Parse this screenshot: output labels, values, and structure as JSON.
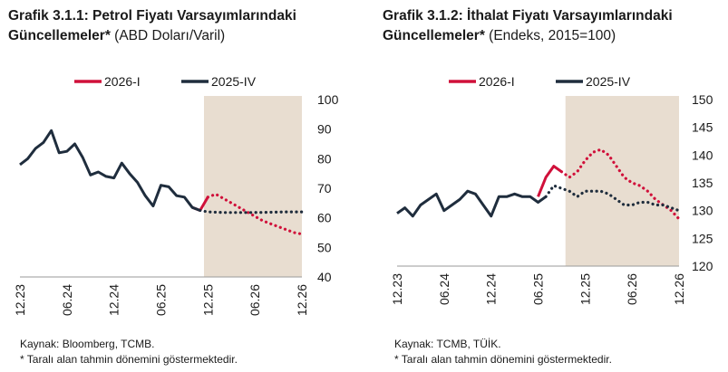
{
  "charts": [
    {
      "title_bold": "Grafik 3.1.1: Petrol Fiyatı Varsayımlarındaki Güncellemeler*",
      "title_unit": "(ABD Doları/Varil)",
      "source_line": "Kaynak: Bloomberg, TCMB.",
      "note_line": "* Taralı alan tahmin dönemini göstermektedir."
    },
    {
      "title_bold": "Grafik 3.1.2: İthalat Fiyatı Varsayımlarındaki Güncellemeler*",
      "title_unit": "(Endeks, 2015=100)",
      "source_line": "Kaynak: TCMB, TÜİK.",
      "note_line": "* Taralı alan tahmin dönemini göstermektedir."
    }
  ],
  "colors": {
    "series_2026": "#d0103a",
    "series_2025": "#1f2d3d",
    "shade": "#e8ddd0",
    "axis": "#9a9a9a"
  },
  "chart_data": [
    {
      "type": "line",
      "x_ticks": [
        "12.23",
        "06.24",
        "12.24",
        "06.25",
        "12.25",
        "06.26",
        "12.26"
      ],
      "x_tick_index": [
        0,
        6,
        12,
        18,
        24,
        30,
        36
      ],
      "ylim": [
        40,
        100
      ],
      "y_ticks": [
        "40",
        "50",
        "60",
        "70",
        "80",
        "90",
        "100"
      ],
      "y_tick_values": [
        40,
        50,
        60,
        70,
        80,
        90,
        100
      ],
      "forecast_shade": [
        23.5,
        36
      ],
      "x_span": [
        0,
        36
      ],
      "legend": [
        "2026-I",
        "2025-IV"
      ],
      "series": [
        {
          "name": "2026-I",
          "color_key": "series_2026",
          "segments": [
            {
              "dash": false,
              "points": [
                [
                  22,
                  63.5
                ],
                [
                  23,
                  62.5
                ],
                [
                  24,
                  67
                ]
              ]
            },
            {
              "dash": true,
              "points": [
                [
                  24,
                  67
                ],
                [
                  25,
                  68
                ],
                [
                  26,
                  66.5
                ],
                [
                  27,
                  65
                ],
                [
                  28,
                  63.5
                ],
                [
                  29,
                  62
                ],
                [
                  30,
                  60.5
                ],
                [
                  31,
                  59
                ],
                [
                  32,
                  58
                ],
                [
                  33,
                  57
                ],
                [
                  34,
                  56
                ],
                [
                  35,
                  55
                ],
                [
                  36,
                  54.5
                ]
              ]
            }
          ]
        },
        {
          "name": "2025-IV",
          "color_key": "series_2025",
          "segments": [
            {
              "dash": false,
              "points": [
                [
                  0,
                  78
                ],
                [
                  1,
                  80
                ],
                [
                  2,
                  83.5
                ],
                [
                  3,
                  85.5
                ],
                [
                  4,
                  89.5
                ],
                [
                  5,
                  82
                ],
                [
                  6,
                  82.5
                ],
                [
                  7,
                  85
                ],
                [
                  8,
                  80.5
                ],
                [
                  9,
                  74.5
                ],
                [
                  10,
                  75.5
                ],
                [
                  11,
                  74
                ],
                [
                  12,
                  73.5
                ],
                [
                  13,
                  78.5
                ],
                [
                  14,
                  75
                ],
                [
                  15,
                  72
                ],
                [
                  16,
                  67.5
                ],
                [
                  17,
                  64
                ],
                [
                  18,
                  71
                ],
                [
                  19,
                  70.5
                ],
                [
                  20,
                  67.5
                ],
                [
                  21,
                  67
                ],
                [
                  22,
                  63.5
                ],
                [
                  23,
                  62.5
                ]
              ]
            },
            {
              "dash": true,
              "points": [
                [
                  23,
                  62.5
                ],
                [
                  24,
                  62
                ],
                [
                  26,
                  61.8
                ],
                [
                  28,
                  61.8
                ],
                [
                  30,
                  61.8
                ],
                [
                  32,
                  61.9
                ],
                [
                  34,
                  62
                ],
                [
                  36,
                  62
                ]
              ]
            }
          ]
        }
      ]
    },
    {
      "type": "line",
      "x_ticks": [
        "12.23",
        "06.24",
        "12.24",
        "06.25",
        "12.25",
        "06.26",
        "12.26"
      ],
      "x_tick_index": [
        0,
        6,
        12,
        18,
        24,
        30,
        36
      ],
      "ylim": [
        120,
        150
      ],
      "y_ticks": [
        "120",
        "125",
        "130",
        "135",
        "140",
        "145",
        "150"
      ],
      "y_tick_values": [
        120,
        125,
        130,
        135,
        140,
        145,
        150
      ],
      "forecast_shade": [
        21.5,
        36
      ],
      "x_span": [
        0,
        36
      ],
      "legend": [
        "2026-I",
        "2025-IV"
      ],
      "series": [
        {
          "name": "2026-I",
          "color_key": "series_2026",
          "segments": [
            {
              "dash": false,
              "points": [
                [
                  18,
                  132.5
                ],
                [
                  19,
                  136
                ],
                [
                  20,
                  138
                ],
                [
                  21,
                  137
                ]
              ]
            },
            {
              "dash": true,
              "points": [
                [
                  21,
                  137
                ],
                [
                  22,
                  136
                ],
                [
                  23,
                  137
                ],
                [
                  24,
                  139
                ],
                [
                  25,
                  140.5
                ],
                [
                  26,
                  141
                ],
                [
                  27,
                  140
                ],
                [
                  28,
                  138
                ],
                [
                  29,
                  136
                ],
                [
                  30,
                  135
                ],
                [
                  31,
                  134.5
                ],
                [
                  32,
                  133.5
                ],
                [
                  33,
                  132
                ],
                [
                  34,
                  131
                ],
                [
                  35,
                  130
                ],
                [
                  36,
                  128.5
                ]
              ]
            }
          ]
        },
        {
          "name": "2025-IV",
          "color_key": "series_2025",
          "segments": [
            {
              "dash": false,
              "points": [
                [
                  0,
                  129.5
                ],
                [
                  1,
                  130.5
                ],
                [
                  2,
                  129
                ],
                [
                  3,
                  131
                ],
                [
                  4,
                  132
                ],
                [
                  5,
                  133
                ],
                [
                  6,
                  130
                ],
                [
                  7,
                  131
                ],
                [
                  8,
                  132
                ],
                [
                  9,
                  133.5
                ],
                [
                  10,
                  133
                ],
                [
                  11,
                  131
                ],
                [
                  12,
                  129
                ],
                [
                  13,
                  132.5
                ],
                [
                  14,
                  132.5
                ],
                [
                  15,
                  133
                ],
                [
                  16,
                  132.5
                ],
                [
                  17,
                  132.5
                ],
                [
                  18,
                  131.5
                ],
                [
                  19,
                  132.5
                ]
              ]
            },
            {
              "dash": true,
              "points": [
                [
                  19,
                  132.5
                ],
                [
                  20,
                  134.5
                ],
                [
                  21,
                  134
                ],
                [
                  22,
                  133.5
                ],
                [
                  23,
                  132.5
                ],
                [
                  24,
                  133.5
                ],
                [
                  25,
                  133.5
                ],
                [
                  26,
                  133.5
                ],
                [
                  27,
                  133
                ],
                [
                  28,
                  132
                ],
                [
                  29,
                  131
                ],
                [
                  30,
                  131
                ],
                [
                  31,
                  131.5
                ],
                [
                  32,
                  131.5
                ],
                [
                  33,
                  131
                ],
                [
                  34,
                  131
                ],
                [
                  35,
                  130.5
                ],
                [
                  36,
                  130
                ]
              ]
            }
          ]
        }
      ]
    }
  ]
}
